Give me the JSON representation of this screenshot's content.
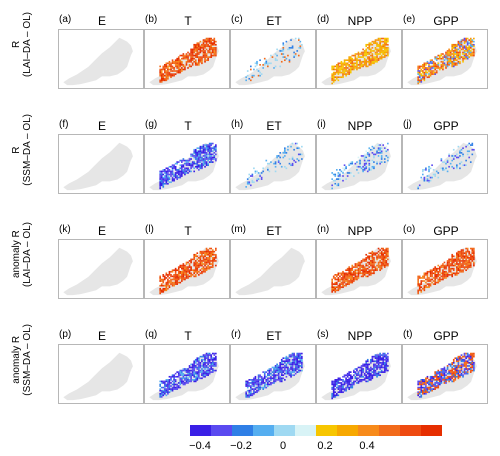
{
  "rows": [
    {
      "label_line1": "R",
      "label_line2": "(LAI–DA – OL)",
      "panels": [
        {
          "letter": "(a)",
          "var": "E",
          "pattern": "empty"
        },
        {
          "letter": "(b)",
          "var": "T",
          "pattern": "strong-positive"
        },
        {
          "letter": "(c)",
          "var": "ET",
          "pattern": "sparse-mixed"
        },
        {
          "letter": "(d)",
          "var": "NPP",
          "pattern": "moderate-positive"
        },
        {
          "letter": "(e)",
          "var": "GPP",
          "pattern": "positive-mixed"
        }
      ]
    },
    {
      "label_line1": "R",
      "label_line2": "(SSM–DA – OL)",
      "panels": [
        {
          "letter": "(f)",
          "var": "E",
          "pattern": "empty"
        },
        {
          "letter": "(g)",
          "var": "T",
          "pattern": "negative"
        },
        {
          "letter": "(h)",
          "var": "ET",
          "pattern": "sparse-negative"
        },
        {
          "letter": "(i)",
          "var": "NPP",
          "pattern": "negative-light"
        },
        {
          "letter": "(j)",
          "var": "GPP",
          "pattern": "sparse-negative"
        }
      ]
    },
    {
      "label_line1": "anomaly R",
      "label_line2": "(LAI–DA – OL)",
      "panels": [
        {
          "letter": "(k)",
          "var": "E",
          "pattern": "empty"
        },
        {
          "letter": "(l)",
          "var": "T",
          "pattern": "strong-positive"
        },
        {
          "letter": "(m)",
          "var": "ET",
          "pattern": "empty"
        },
        {
          "letter": "(n)",
          "var": "NPP",
          "pattern": "strong-positive"
        },
        {
          "letter": "(o)",
          "var": "GPP",
          "pattern": "strong-positive"
        }
      ]
    },
    {
      "label_line1": "anomaly R",
      "label_line2": "(SSM–DA – OL)",
      "panels": [
        {
          "letter": "(p)",
          "var": "E",
          "pattern": "empty"
        },
        {
          "letter": "(q)",
          "var": "T",
          "pattern": "negative"
        },
        {
          "letter": "(r)",
          "var": "ET",
          "pattern": "negative"
        },
        {
          "letter": "(s)",
          "var": "NPP",
          "pattern": "negative-strong"
        },
        {
          "letter": "(t)",
          "var": "GPP",
          "pattern": "negative-mixed"
        }
      ]
    }
  ],
  "colorbar": {
    "colors": [
      "#3a1fe6",
      "#5a4af0",
      "#2f7fe6",
      "#55aef0",
      "#9fd9f2",
      "#d8f3f6",
      "#f7c600",
      "#f7a800",
      "#f78a1a",
      "#f26a1a",
      "#ee4a10",
      "#e62e00"
    ],
    "tick_labels": [
      "−0.4",
      "−0.2",
      "0",
      "0.2",
      "0.4"
    ]
  },
  "map_color": "#e6e6e6"
}
